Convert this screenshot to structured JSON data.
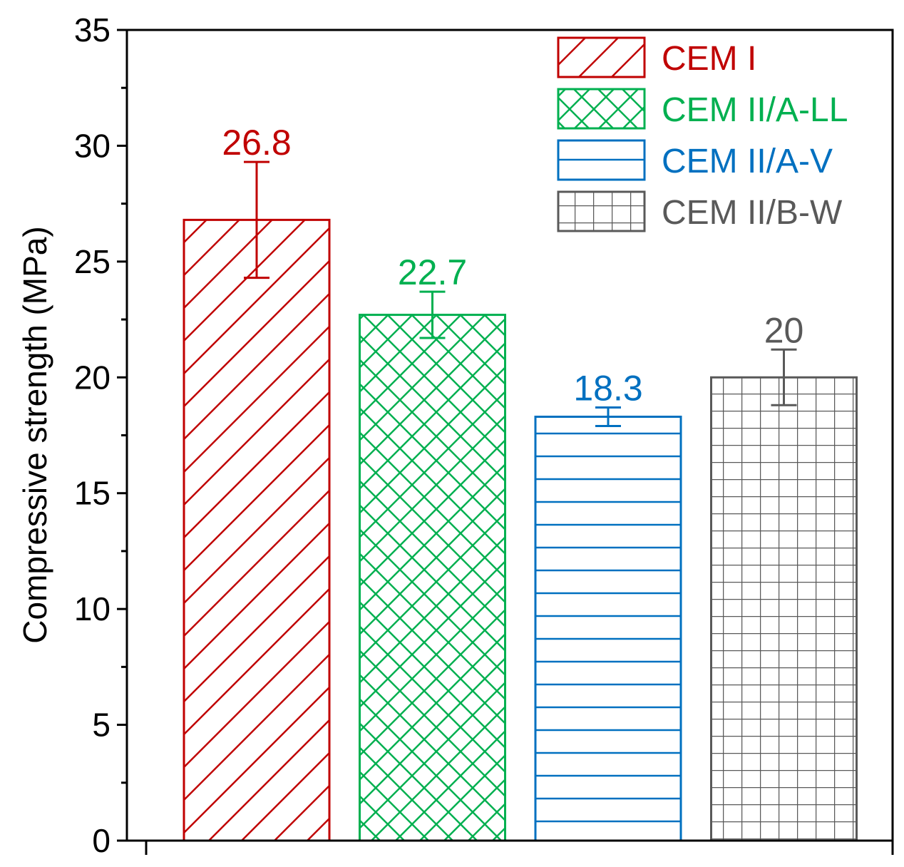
{
  "chart_data": {
    "type": "bar",
    "title": "",
    "xlabel": "",
    "ylabel": "Compressive strength (MPa)",
    "ylim": [
      0,
      35
    ],
    "yticks": [
      0,
      5,
      10,
      15,
      20,
      25,
      30,
      35
    ],
    "categories": [
      "CEM I",
      "CEM II/A-LL",
      "CEM II/A-V",
      "CEM II/B-W"
    ],
    "values": [
      26.8,
      22.7,
      18.3,
      20
    ],
    "value_labels": [
      "26.8",
      "22.7",
      "18.3",
      "20"
    ],
    "errors": [
      2.5,
      1.0,
      0.4,
      1.2
    ],
    "colors": [
      "#c00000",
      "#00b050",
      "#0070c0",
      "#595959"
    ],
    "patterns": [
      "diagonal",
      "crosshatch",
      "horizontal",
      "grid"
    ],
    "legend_position": "top-right"
  }
}
